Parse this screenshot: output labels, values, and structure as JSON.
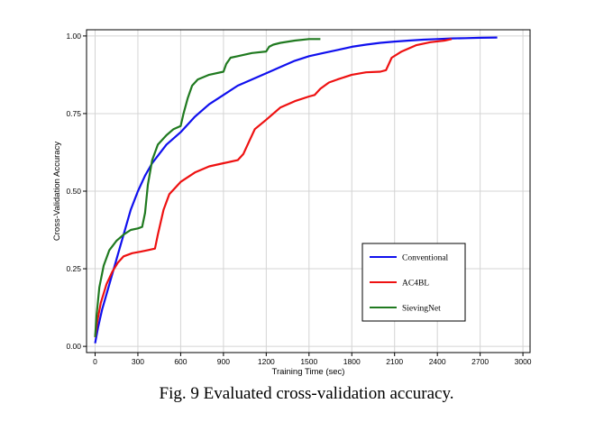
{
  "caption": "Fig. 9  Evaluated cross-validation accuracy.",
  "chart_data": {
    "type": "line",
    "xlabel": "Training Time (sec)",
    "ylabel": "Cross-Validation Accuracy",
    "xlim": [
      -60,
      3050
    ],
    "ylim": [
      -0.02,
      1.02
    ],
    "xticks": [
      0,
      300,
      600,
      900,
      1200,
      1500,
      1800,
      2100,
      2400,
      2700,
      3000
    ],
    "yticks": [
      0.0,
      0.25,
      0.5,
      0.75,
      1.0
    ],
    "ytick_labels": [
      "0.00",
      "0.25",
      "0.50",
      "0.75",
      "1.00"
    ],
    "grid": true,
    "legend_position": "lower-right",
    "series": [
      {
        "name": "Conventional",
        "color": "#1010ee",
        "x": [
          0,
          20,
          50,
          100,
          150,
          200,
          250,
          300,
          350,
          400,
          450,
          500,
          600,
          700,
          800,
          900,
          1000,
          1100,
          1200,
          1300,
          1400,
          1500,
          1600,
          1700,
          1800,
          1900,
          2000,
          2100,
          2200,
          2300,
          2400,
          2500,
          2600,
          2700,
          2820
        ],
        "y": [
          0.01,
          0.06,
          0.12,
          0.2,
          0.28,
          0.36,
          0.44,
          0.5,
          0.55,
          0.59,
          0.62,
          0.65,
          0.69,
          0.74,
          0.78,
          0.81,
          0.84,
          0.86,
          0.88,
          0.9,
          0.92,
          0.935,
          0.945,
          0.955,
          0.965,
          0.972,
          0.978,
          0.982,
          0.985,
          0.988,
          0.99,
          0.992,
          0.993,
          0.994,
          0.995
        ]
      },
      {
        "name": "AC4BL",
        "color": "#ee1111",
        "x": [
          0,
          15,
          40,
          80,
          120,
          160,
          200,
          260,
          320,
          370,
          420,
          440,
          480,
          520,
          600,
          700,
          800,
          900,
          1000,
          1040,
          1080,
          1120,
          1200,
          1300,
          1400,
          1500,
          1540,
          1580,
          1640,
          1700,
          1800,
          1900,
          2000,
          2040,
          2080,
          2150,
          2250,
          2350,
          2450,
          2500
        ],
        "y": [
          0.03,
          0.08,
          0.14,
          0.2,
          0.24,
          0.27,
          0.29,
          0.3,
          0.305,
          0.31,
          0.315,
          0.36,
          0.44,
          0.49,
          0.53,
          0.56,
          0.58,
          0.59,
          0.6,
          0.62,
          0.66,
          0.7,
          0.73,
          0.77,
          0.79,
          0.805,
          0.81,
          0.83,
          0.85,
          0.86,
          0.875,
          0.883,
          0.885,
          0.89,
          0.93,
          0.95,
          0.97,
          0.98,
          0.985,
          0.99
        ]
      },
      {
        "name": "SievingNet",
        "color": "#207a20",
        "x": [
          0,
          10,
          30,
          60,
          100,
          150,
          200,
          250,
          300,
          330,
          350,
          370,
          400,
          440,
          500,
          550,
          600,
          620,
          650,
          680,
          720,
          800,
          900,
          920,
          950,
          1000,
          1100,
          1200,
          1220,
          1250,
          1300,
          1400,
          1500,
          1580
        ],
        "y": [
          0.03,
          0.1,
          0.19,
          0.26,
          0.31,
          0.34,
          0.36,
          0.375,
          0.38,
          0.385,
          0.43,
          0.52,
          0.6,
          0.65,
          0.68,
          0.7,
          0.71,
          0.75,
          0.8,
          0.84,
          0.86,
          0.875,
          0.885,
          0.91,
          0.93,
          0.935,
          0.945,
          0.95,
          0.965,
          0.972,
          0.978,
          0.985,
          0.99,
          0.99
        ]
      }
    ]
  }
}
